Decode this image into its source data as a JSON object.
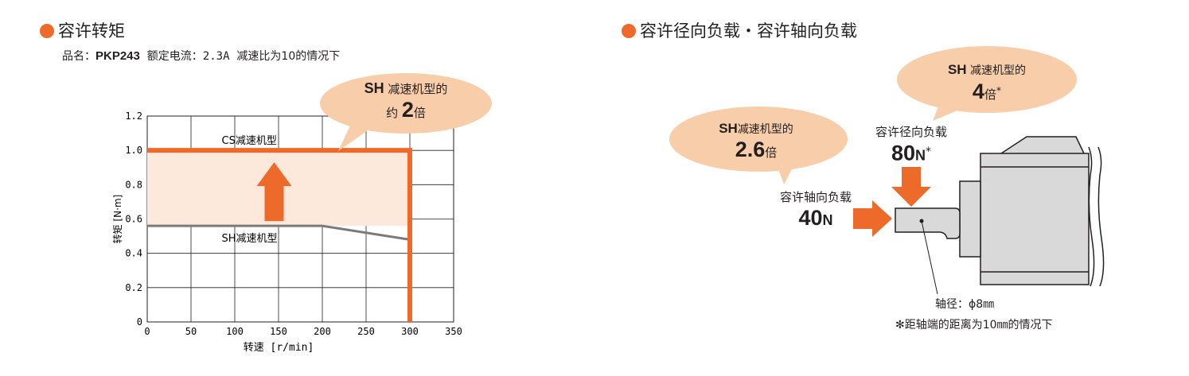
{
  "colors": {
    "accent": "#ee6a2b",
    "band": "#fde8dc",
    "bubble": "#f8cda9",
    "sh_line": "#7a7a7a",
    "grid": "#231f20"
  },
  "left": {
    "title": "容许转矩",
    "subtitle": {
      "name_label": "品名：",
      "product": "PKP243",
      "rated": "额定电流：2.3A",
      "condition": "减速比为10的情况下"
    },
    "bubble": {
      "sh": "SH",
      "line1": "减速机型的",
      "prefix": "约",
      "num": "2",
      "suffix": "倍"
    }
  },
  "chart_data": {
    "type": "line",
    "xlabel": "转速 [r/min]",
    "ylabel": "转矩 [N·m]",
    "xlim": [
      0,
      350
    ],
    "ylim": [
      0,
      1.2
    ],
    "x_ticks": [
      "0",
      "50",
      "100",
      "150",
      "200",
      "250",
      "300",
      "350"
    ],
    "y_ticks": [
      "0",
      "0.2",
      "0.4",
      "0.6",
      "0.8",
      "1.0",
      "1.2"
    ],
    "grid": true,
    "series": [
      {
        "name": "CS减速机型",
        "color": "#ee6a2b",
        "x": [
          0,
          300,
          300
        ],
        "y": [
          1.0,
          1.0,
          0
        ]
      },
      {
        "name": "SH减速机型",
        "color": "#7a7a7a",
        "x": [
          0,
          200,
          300
        ],
        "y": [
          0.56,
          0.56,
          0.48
        ]
      }
    ]
  },
  "right": {
    "title": "容许径向负载・容许轴向负载",
    "bubble_top": {
      "sh": "SH",
      "line1": "减速机型的",
      "num": "4",
      "suffix": "倍",
      "mark": "*"
    },
    "bubble_left": {
      "sh": "SH",
      "line1": "减速机型的",
      "num": "2.6",
      "suffix": "倍"
    },
    "radial": {
      "label": "容许径向负载",
      "num": "80",
      "unit": "N",
      "mark": "*"
    },
    "axial": {
      "label": "容许轴向负载",
      "num": "40",
      "unit": "N"
    },
    "shaft": "轴径：ϕ8㎜",
    "note": "✻距轴端的距离为10㎜的情况下"
  }
}
